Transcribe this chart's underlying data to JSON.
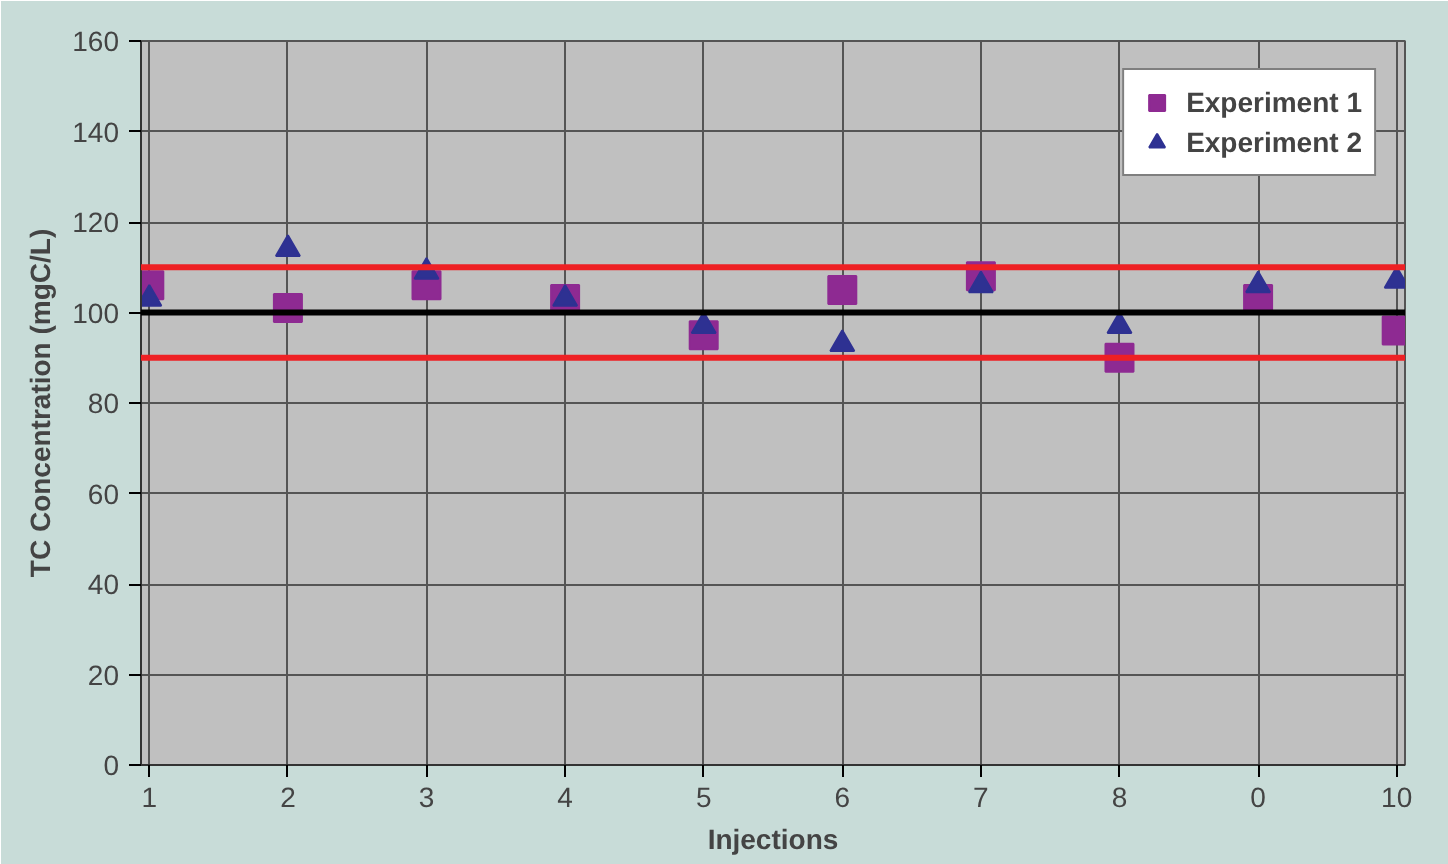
{
  "chart_data": {
    "type": "scatter",
    "xlabel": "Injections",
    "ylabel": "TC Concentration (mgC/L)",
    "categories": [
      "1",
      "2",
      "3",
      "4",
      "5",
      "6",
      "7",
      "8",
      "0",
      "10"
    ],
    "series": [
      {
        "name": "Experiment 1",
        "color": "#8e2a92",
        "marker": "square",
        "values": [
          106,
          101,
          106,
          103,
          95,
          105,
          108,
          90,
          103,
          96
        ]
      },
      {
        "name": "Experiment 2",
        "color": "#2e3192",
        "marker": "triangle",
        "values": [
          103,
          114,
          109,
          103,
          97,
          93,
          106,
          97,
          106,
          107
        ]
      }
    ],
    "ylim": [
      0,
      160
    ],
    "yticks": [
      0,
      20,
      40,
      60,
      80,
      100,
      120,
      140,
      160
    ],
    "ref_lines": [
      {
        "axis": "y",
        "value": 100,
        "color": "#000000"
      },
      {
        "axis": "y",
        "value": 110,
        "color": "#ee2024"
      },
      {
        "axis": "y",
        "value": 90,
        "color": "#ee2024"
      }
    ],
    "grid": true,
    "legend": "top right"
  }
}
